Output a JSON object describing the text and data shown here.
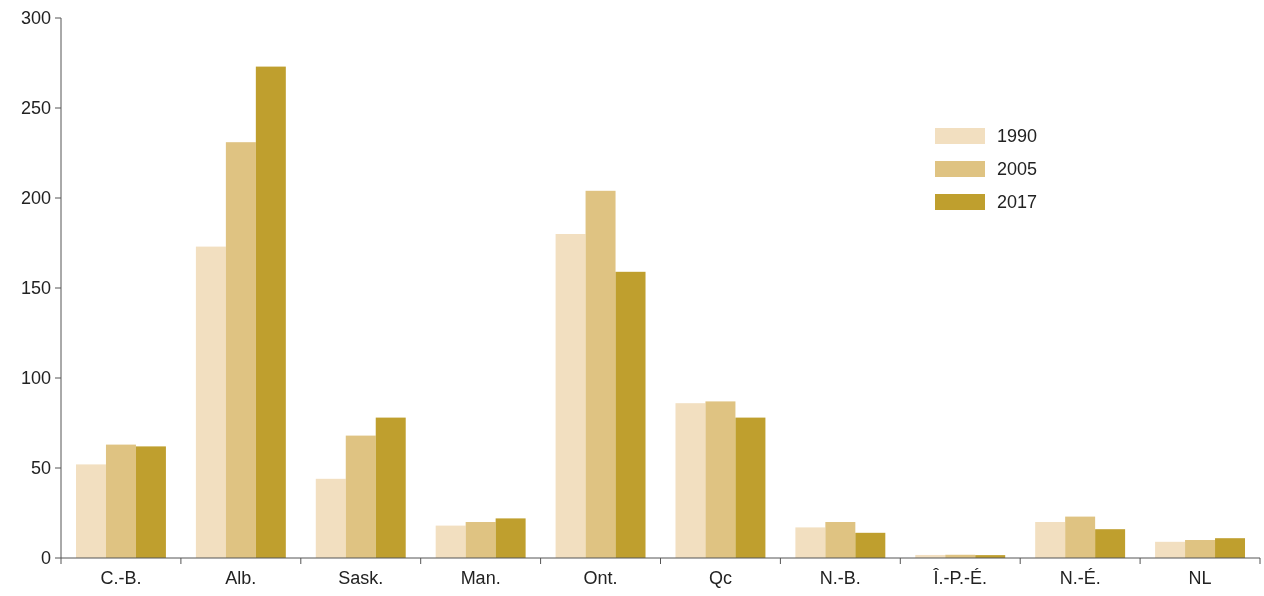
{
  "chart_data": {
    "type": "bar",
    "categories": [
      "C.-B.",
      "Alb.",
      "Sask.",
      "Man.",
      "Ont.",
      "Qc",
      "N.-B.",
      "Î.-P.-É.",
      "N.-É.",
      "NL"
    ],
    "series": [
      {
        "name": "1990",
        "color": "#f2dfc0",
        "values": [
          52,
          173,
          44,
          18,
          180,
          86,
          17,
          1.7,
          20,
          9
        ]
      },
      {
        "name": "2005",
        "color": "#dfc382",
        "values": [
          63,
          231,
          68,
          20,
          204,
          87,
          20,
          1.8,
          23,
          10
        ]
      },
      {
        "name": "2017",
        "color": "#bf9f2e",
        "values": [
          62,
          273,
          78,
          22,
          159,
          78,
          14,
          1.6,
          16,
          11
        ]
      }
    ],
    "ylim": [
      0,
      300
    ],
    "yticks": [
      0,
      50,
      100,
      150,
      200,
      250,
      300
    ],
    "grid": false,
    "legend": "top right"
  }
}
